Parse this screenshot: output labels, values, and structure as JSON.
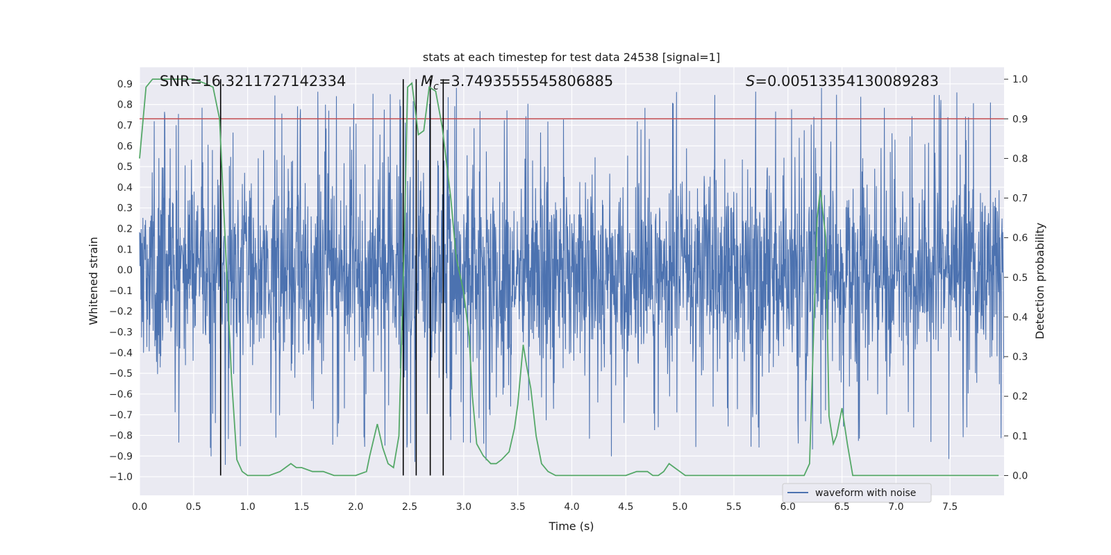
{
  "chart_data": {
    "type": "line",
    "title": "stats at each timestep for test data 24538 [signal=1]",
    "xlabel": "Time (s)",
    "ylabel_left": "Whitened strain",
    "ylabel_right": "Detection probability",
    "xlim": [
      0.0,
      8.0
    ],
    "ylim_left": [
      -1.09,
      0.98
    ],
    "ylim_right": [
      -0.05,
      1.03
    ],
    "xticks": [
      0.0,
      0.5,
      1.0,
      1.5,
      2.0,
      2.5,
      3.0,
      3.5,
      4.0,
      4.5,
      5.0,
      5.5,
      6.0,
      6.5,
      7.0,
      7.5
    ],
    "xtick_labels": [
      "0.0",
      "0.5",
      "1.0",
      "1.5",
      "2.0",
      "2.5",
      "3.0",
      "3.5",
      "4.0",
      "4.5",
      "5.0",
      "5.5",
      "6.0",
      "6.5",
      "7.0",
      "7.5"
    ],
    "yticks_left": [
      0.9,
      0.8,
      0.7,
      0.6,
      0.5,
      0.4,
      0.3,
      0.2,
      0.1,
      0.0,
      -0.1,
      -0.2,
      -0.3,
      -0.4,
      -0.5,
      -0.6,
      -0.7,
      -0.8,
      -0.9,
      -1.0
    ],
    "ytick_labels_left": [
      "0.9",
      "0.8",
      "0.7",
      "0.6",
      "0.5",
      "0.4",
      "0.3",
      "0.2",
      "0.1",
      "0.0",
      "−0.1",
      "−0.2",
      "−0.3",
      "−0.4",
      "−0.5",
      "−0.6",
      "−0.7",
      "−0.8",
      "−0.9",
      "−1.0"
    ],
    "yticks_right": [
      1.0,
      0.9,
      0.8,
      0.7,
      0.6,
      0.5,
      0.4,
      0.3,
      0.2,
      0.1,
      0.0
    ],
    "ytick_labels_right": [
      "1.0",
      "0.9",
      "0.8",
      "0.7",
      "0.6",
      "0.5",
      "0.4",
      "0.3",
      "0.2",
      "0.1",
      "0.0"
    ],
    "grid": true,
    "annotations": {
      "snr": "SNR=16.3211727142334",
      "mc_prefix": "M",
      "mc_sub": "c",
      "mc_value": "=3.7493555545806885",
      "s_prefix": "S",
      "s_value": "=0.00513354130089283"
    },
    "series": [
      {
        "name": "waveform with noise",
        "axis": "left",
        "color": "#4c72b0",
        "style": "noise",
        "typical_amplitude": 0.3,
        "spike_range": [
          -0.95,
          0.88
        ],
        "in_legend": true
      },
      {
        "name": "detection probability",
        "axis": "right",
        "color": "#55a868",
        "in_legend": false,
        "x": [
          0.0,
          0.06,
          0.12,
          0.2,
          0.3,
          0.4,
          0.5,
          0.6,
          0.68,
          0.74,
          0.8,
          0.85,
          0.9,
          0.95,
          1.0,
          1.05,
          1.1,
          1.2,
          1.3,
          1.35,
          1.4,
          1.45,
          1.5,
          1.6,
          1.7,
          1.8,
          1.9,
          2.0,
          2.1,
          2.13,
          2.2,
          2.25,
          2.3,
          2.35,
          2.4,
          2.45,
          2.48,
          2.52,
          2.58,
          2.63,
          2.68,
          2.74,
          2.8,
          2.88,
          2.93,
          2.97,
          3.0,
          3.05,
          3.08,
          3.12,
          3.18,
          3.25,
          3.3,
          3.35,
          3.42,
          3.47,
          3.5,
          3.55,
          3.58,
          3.62,
          3.67,
          3.72,
          3.78,
          3.85,
          3.9,
          3.95,
          4.0,
          4.2,
          4.4,
          4.5,
          4.6,
          4.65,
          4.7,
          4.75,
          4.8,
          4.85,
          4.9,
          4.95,
          5.0,
          5.05,
          5.1,
          5.3,
          5.5,
          5.7,
          5.9,
          6.0,
          6.1,
          6.15,
          6.2,
          6.27,
          6.3,
          6.35,
          6.38,
          6.42,
          6.45,
          6.5,
          6.55,
          6.6,
          6.65,
          6.7,
          6.8,
          6.9,
          7.0,
          7.2,
          7.4,
          7.6,
          7.8,
          7.9,
          7.95
        ],
        "y": [
          0.8,
          0.98,
          1.0,
          1.0,
          1.0,
          1.0,
          1.0,
          0.99,
          0.98,
          0.9,
          0.55,
          0.25,
          0.04,
          0.01,
          0.0,
          0.0,
          0.0,
          0.0,
          0.01,
          0.02,
          0.03,
          0.02,
          0.02,
          0.01,
          0.01,
          0.0,
          0.0,
          0.0,
          0.01,
          0.05,
          0.13,
          0.07,
          0.03,
          0.02,
          0.1,
          0.6,
          0.98,
          0.99,
          0.86,
          0.87,
          0.98,
          0.97,
          0.88,
          0.7,
          0.55,
          0.5,
          0.46,
          0.35,
          0.2,
          0.08,
          0.05,
          0.03,
          0.03,
          0.04,
          0.06,
          0.12,
          0.18,
          0.33,
          0.28,
          0.22,
          0.1,
          0.03,
          0.01,
          0.0,
          0.0,
          0.0,
          0.0,
          0.0,
          0.0,
          0.0,
          0.01,
          0.01,
          0.01,
          0.0,
          0.0,
          0.01,
          0.03,
          0.02,
          0.01,
          0.0,
          0.0,
          0.0,
          0.0,
          0.0,
          0.0,
          0.0,
          0.0,
          0.0,
          0.03,
          0.65,
          0.72,
          0.6,
          0.15,
          0.08,
          0.1,
          0.17,
          0.08,
          0.0,
          0.0,
          0.0,
          0.0,
          0.0,
          0.0,
          0.0,
          0.0,
          0.0,
          0.0,
          0.0,
          0.0
        ]
      },
      {
        "name": "threshold",
        "axis": "right",
        "color": "#c44e52",
        "y": 0.9,
        "in_legend": false
      }
    ],
    "vertical_markers": [
      0.75,
      2.44,
      2.56,
      2.69,
      2.81
    ],
    "vertical_marker_range_right": [
      0.0,
      1.0
    ],
    "legend": {
      "label": "waveform with noise",
      "placement": "lower-right"
    }
  }
}
